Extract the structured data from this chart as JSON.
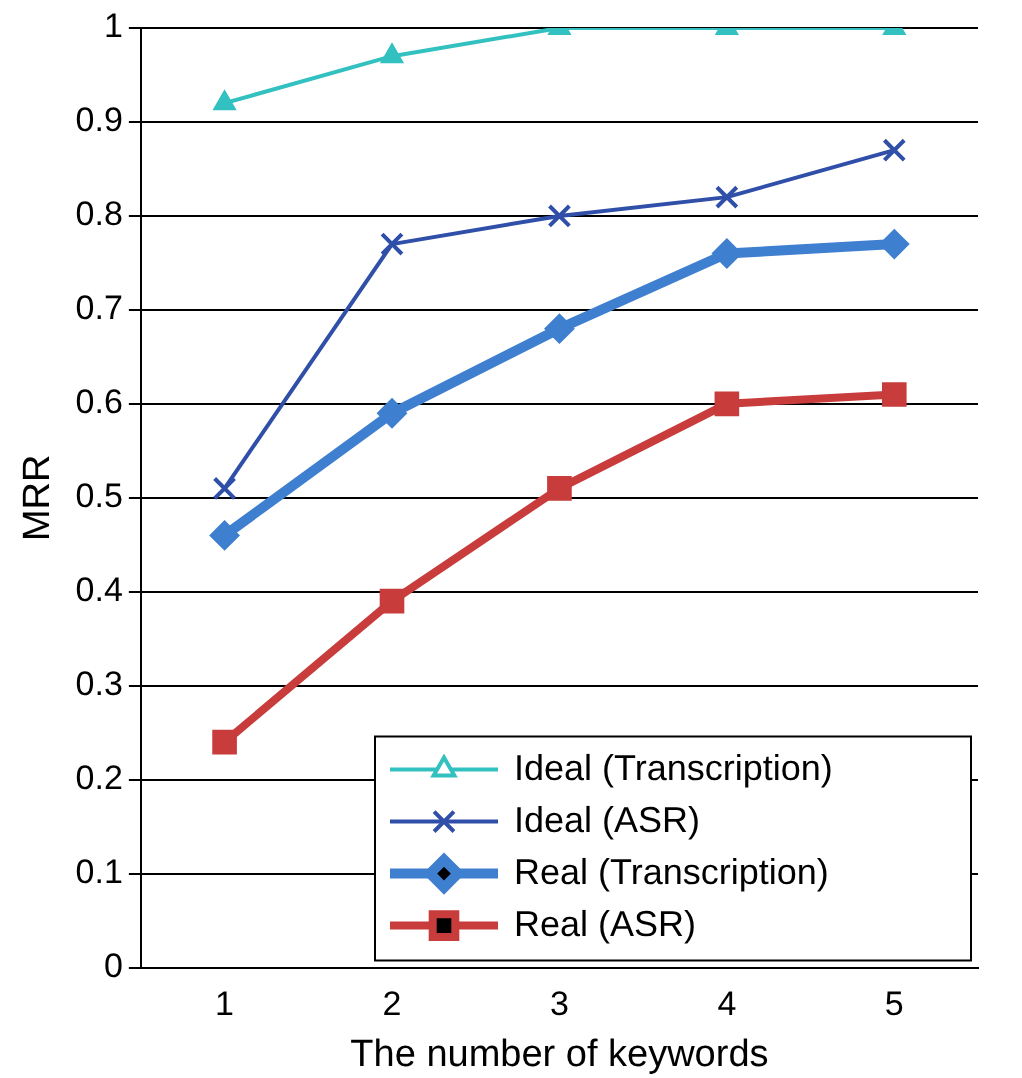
{
  "chart_data": {
    "type": "line",
    "xlabel": "The number of keywords",
    "ylabel": "MRR",
    "categories": [
      "1",
      "2",
      "3",
      "4",
      "5"
    ],
    "ylim": [
      0,
      1
    ],
    "yticks": [
      0,
      0.1,
      0.2,
      0.3,
      0.4,
      0.5,
      0.6,
      0.7,
      0.8,
      0.9,
      1
    ],
    "grid": "y",
    "legend": "bottom right",
    "series": [
      {
        "name": "Ideal (Transcription)",
        "color": "#33c0c0",
        "marker": "triangle",
        "values": [
          0.92,
          0.97,
          1,
          1,
          1
        ]
      },
      {
        "name": "Ideal (ASR)",
        "color": "#2f4fa8",
        "marker": "cross",
        "values": [
          0.51,
          0.77,
          0.8,
          0.82,
          0.87
        ]
      },
      {
        "name": "Real (Transcription)",
        "color": "#3f7fcf",
        "marker": "diamond",
        "values": [
          0.46,
          0.59,
          0.68,
          0.76,
          0.77
        ]
      },
      {
        "name": "Real (ASR)",
        "color": "#c83c3c",
        "marker": "square",
        "values": [
          0.24,
          0.39,
          0.51,
          0.6,
          0.61
        ]
      }
    ]
  }
}
